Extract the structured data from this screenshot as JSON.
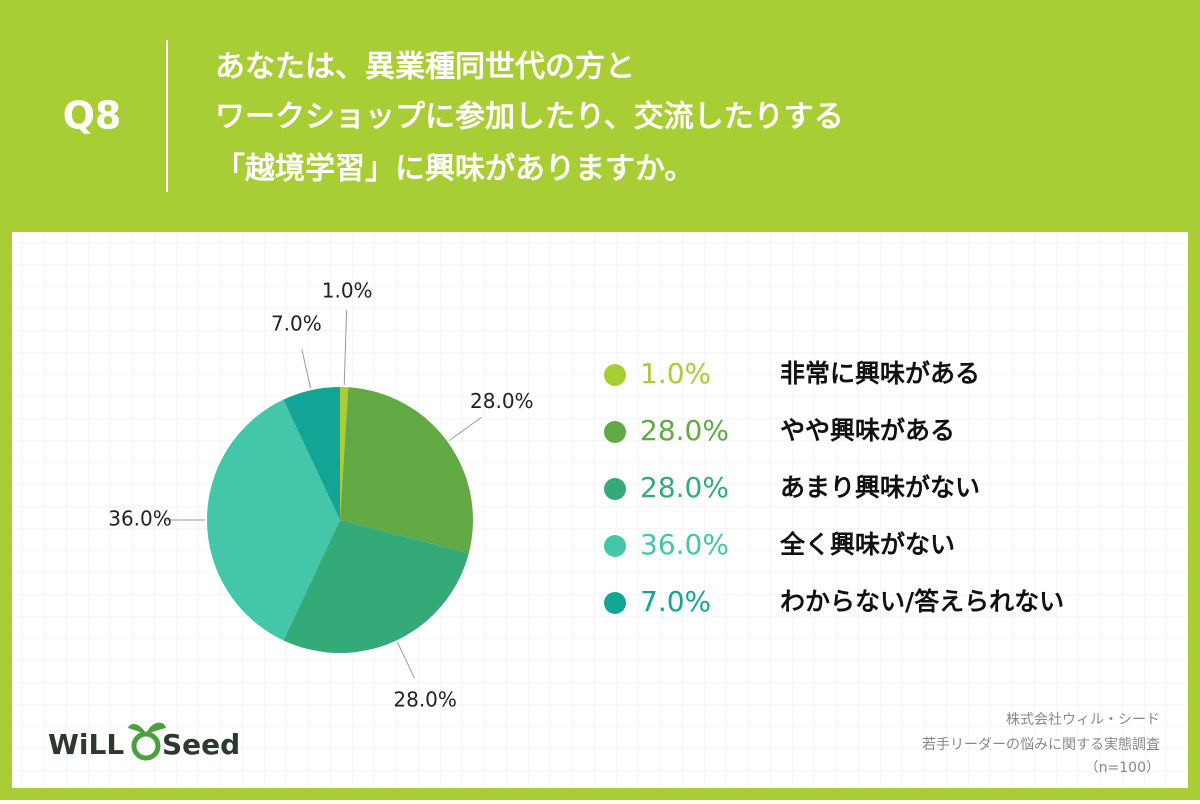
{
  "chart_data": {
    "type": "pie",
    "question": "Q8",
    "title": [
      "あなたは、異業種同世代の方と",
      "ワークショップに参加したり、交流したりする",
      "「越境学習」に興味がありますか。"
    ],
    "categories": [
      "非常に興味がある",
      "やや興味がある",
      "あまり興味がない",
      "全く興味がない",
      "わからない/答えられない"
    ],
    "values": [
      1,
      28,
      28,
      36,
      7
    ],
    "value_labels": [
      "1.0%",
      "28.0%",
      "28.0%",
      "36.0%",
      "7.0%"
    ],
    "colors": [
      "#a8cd35",
      "#62a843",
      "#33aa78",
      "#44c6a8",
      "#12a596"
    ],
    "source": [
      "株式会社ウィル・シード",
      "若手リーダーの悩みに関する実態調査",
      "（n=100）"
    ],
    "logo": [
      "WiLL",
      "Seed"
    ]
  }
}
